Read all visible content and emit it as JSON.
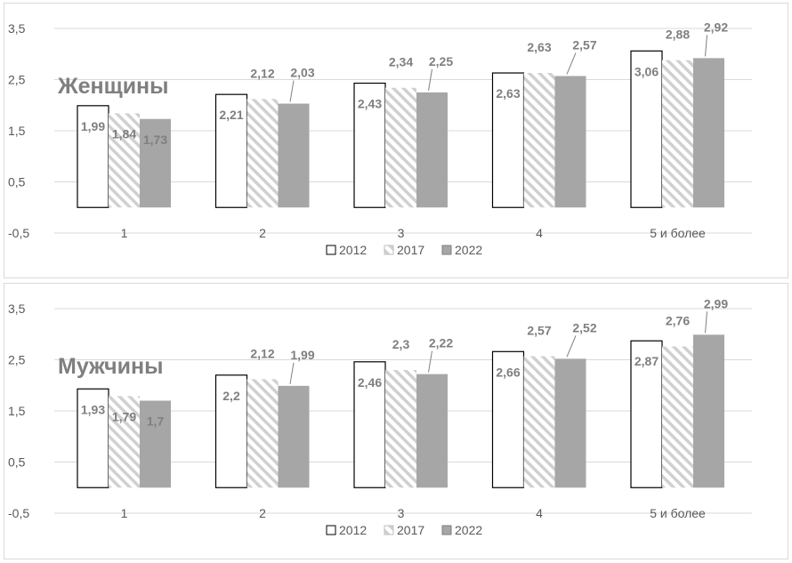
{
  "chart_data": [
    {
      "type": "bar",
      "title": "Женщины",
      "categories": [
        "1",
        "2",
        "3",
        "4",
        "5 и более"
      ],
      "series": [
        {
          "name": "2012",
          "values": [
            1.99,
            2.21,
            2.43,
            2.63,
            3.06
          ]
        },
        {
          "name": "2017",
          "values": [
            1.84,
            2.12,
            2.34,
            2.63,
            2.88
          ]
        },
        {
          "name": "2022",
          "values": [
            1.73,
            2.03,
            2.25,
            2.57,
            2.92
          ]
        }
      ],
      "data_labels": [
        [
          "1,99",
          "2,21",
          "2,43",
          "2,63",
          "3,06"
        ],
        [
          "1,84",
          "2,12",
          "2,34",
          "2,63",
          "2,88"
        ],
        [
          "1,73",
          "2,03",
          "2,25",
          "2,57",
          "2,92"
        ]
      ],
      "y_ticks": [
        "3,5",
        "2,5",
        "1,5",
        "0,5",
        "-0,5"
      ],
      "ylim": [
        -0.5,
        3.5
      ],
      "grid": true,
      "legend": "bottom"
    },
    {
      "type": "bar",
      "title": "Мужчины",
      "categories": [
        "1",
        "2",
        "3",
        "4",
        "5 и более"
      ],
      "series": [
        {
          "name": "2012",
          "values": [
            1.93,
            2.2,
            2.46,
            2.66,
            2.87
          ]
        },
        {
          "name": "2017",
          "values": [
            1.79,
            2.12,
            2.3,
            2.57,
            2.76
          ]
        },
        {
          "name": "2022",
          "values": [
            1.7,
            1.99,
            2.22,
            2.52,
            2.99
          ]
        }
      ],
      "data_labels": [
        [
          "1,93",
          "2,2",
          "2,46",
          "2,66",
          "2,87"
        ],
        [
          "1,79",
          "2,12",
          "2,3",
          "2,57",
          "2,76"
        ],
        [
          "1,7",
          "1,99",
          "2,22",
          "2,52",
          "2,99"
        ]
      ],
      "y_ticks": [
        "3,5",
        "2,5",
        "1,5",
        "0,5",
        "-0,5"
      ],
      "ylim": [
        -0.5,
        3.5
      ],
      "grid": true,
      "legend": "bottom"
    }
  ],
  "colors": {
    "series_2012_fill": "#ffffff",
    "series_2012_stroke": "#000000",
    "series_2017_fill": "#ffffff",
    "series_2017_hatch": "#d0d0d0",
    "series_2022_fill": "#a6a6a6",
    "grid": "#d9d9d9",
    "label": "#7f7f7f"
  }
}
